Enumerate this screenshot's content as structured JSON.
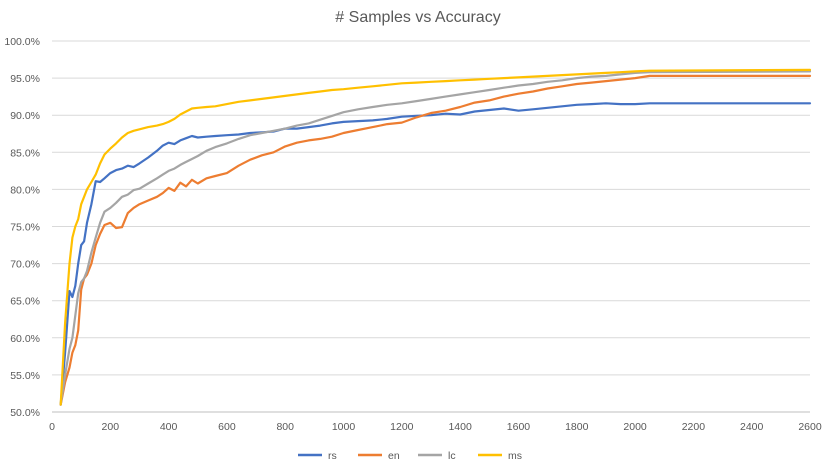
{
  "chart_data": {
    "type": "line",
    "title": "# Samples vs Accuracy",
    "xlabel": "",
    "ylabel": "",
    "xlim": [
      0,
      2600
    ],
    "ylim": [
      0.5,
      1.0
    ],
    "x_ticks": [
      0,
      200,
      400,
      600,
      800,
      1000,
      1200,
      1400,
      1600,
      1800,
      2000,
      2200,
      2400,
      2600
    ],
    "y_ticks": [
      0.5,
      0.55,
      0.6,
      0.65,
      0.7,
      0.75,
      0.8,
      0.85,
      0.9,
      0.95,
      1.0
    ],
    "x_tick_labels": [
      "0",
      "200",
      "400",
      "600",
      "800",
      "1000",
      "1200",
      "1400",
      "1600",
      "1800",
      "2000",
      "2200",
      "2400",
      "2600"
    ],
    "y_tick_labels": [
      "50.0%",
      "55.0%",
      "60.0%",
      "65.0%",
      "70.0%",
      "75.0%",
      "80.0%",
      "85.0%",
      "90.0%",
      "95.0%",
      "100.0%"
    ],
    "grid": "horizontal",
    "legend_position": "bottom",
    "series": [
      {
        "name": "rs",
        "color": "#4472c4",
        "x": [
          30,
          45,
          60,
          70,
          80,
          90,
          100,
          110,
          120,
          135,
          150,
          165,
          180,
          200,
          220,
          240,
          260,
          280,
          300,
          330,
          360,
          380,
          400,
          420,
          440,
          460,
          480,
          500,
          530,
          560,
          600,
          640,
          680,
          720,
          760,
          800,
          840,
          880,
          920,
          960,
          1000,
          1050,
          1100,
          1150,
          1200,
          1250,
          1300,
          1350,
          1400,
          1450,
          1500,
          1550,
          1600,
          1650,
          1700,
          1750,
          1800,
          1850,
          1900,
          1950,
          2000,
          2050,
          2600
        ],
        "y": [
          0.51,
          0.58,
          0.663,
          0.655,
          0.67,
          0.7,
          0.725,
          0.73,
          0.755,
          0.78,
          0.811,
          0.81,
          0.815,
          0.822,
          0.826,
          0.828,
          0.832,
          0.83,
          0.835,
          0.843,
          0.852,
          0.859,
          0.863,
          0.861,
          0.866,
          0.869,
          0.872,
          0.87,
          0.871,
          0.872,
          0.873,
          0.874,
          0.876,
          0.877,
          0.878,
          0.882,
          0.882,
          0.884,
          0.886,
          0.889,
          0.891,
          0.892,
          0.893,
          0.895,
          0.898,
          0.899,
          0.9,
          0.902,
          0.901,
          0.905,
          0.907,
          0.909,
          0.906,
          0.908,
          0.91,
          0.912,
          0.914,
          0.915,
          0.916,
          0.915,
          0.915,
          0.916,
          0.916
        ]
      },
      {
        "name": "en",
        "color": "#ed7d31",
        "x": [
          30,
          45,
          60,
          70,
          80,
          90,
          100,
          110,
          120,
          135,
          150,
          165,
          180,
          200,
          220,
          240,
          260,
          280,
          300,
          330,
          360,
          380,
          400,
          420,
          440,
          460,
          480,
          500,
          530,
          560,
          600,
          640,
          680,
          720,
          760,
          800,
          840,
          880,
          920,
          960,
          1000,
          1050,
          1100,
          1150,
          1200,
          1250,
          1300,
          1350,
          1400,
          1450,
          1500,
          1550,
          1600,
          1650,
          1700,
          1750,
          1800,
          1850,
          1900,
          1950,
          2000,
          2050,
          2600
        ],
        "y": [
          0.51,
          0.54,
          0.56,
          0.58,
          0.59,
          0.61,
          0.665,
          0.68,
          0.685,
          0.7,
          0.725,
          0.74,
          0.752,
          0.755,
          0.748,
          0.749,
          0.768,
          0.775,
          0.78,
          0.785,
          0.79,
          0.795,
          0.802,
          0.798,
          0.809,
          0.804,
          0.813,
          0.808,
          0.815,
          0.818,
          0.822,
          0.832,
          0.84,
          0.846,
          0.85,
          0.858,
          0.863,
          0.866,
          0.868,
          0.871,
          0.876,
          0.88,
          0.884,
          0.888,
          0.89,
          0.897,
          0.903,
          0.906,
          0.911,
          0.917,
          0.92,
          0.925,
          0.929,
          0.932,
          0.936,
          0.939,
          0.942,
          0.944,
          0.946,
          0.948,
          0.95,
          0.953,
          0.953
        ]
      },
      {
        "name": "lc",
        "color": "#a5a5a5",
        "x": [
          30,
          45,
          60,
          70,
          80,
          90,
          100,
          110,
          120,
          135,
          150,
          165,
          180,
          200,
          220,
          240,
          260,
          280,
          300,
          330,
          360,
          380,
          400,
          420,
          440,
          460,
          480,
          500,
          530,
          560,
          600,
          640,
          680,
          720,
          760,
          800,
          840,
          880,
          920,
          960,
          1000,
          1050,
          1100,
          1150,
          1200,
          1250,
          1300,
          1350,
          1400,
          1450,
          1500,
          1550,
          1600,
          1650,
          1700,
          1750,
          1800,
          1850,
          1900,
          1950,
          2000,
          2050,
          2600
        ],
        "y": [
          0.51,
          0.55,
          0.585,
          0.6,
          0.63,
          0.66,
          0.675,
          0.68,
          0.69,
          0.715,
          0.735,
          0.755,
          0.77,
          0.775,
          0.782,
          0.79,
          0.793,
          0.799,
          0.801,
          0.808,
          0.815,
          0.82,
          0.825,
          0.828,
          0.833,
          0.837,
          0.841,
          0.845,
          0.852,
          0.857,
          0.862,
          0.868,
          0.873,
          0.876,
          0.879,
          0.882,
          0.886,
          0.889,
          0.894,
          0.899,
          0.904,
          0.908,
          0.911,
          0.914,
          0.916,
          0.919,
          0.922,
          0.925,
          0.928,
          0.931,
          0.934,
          0.937,
          0.94,
          0.942,
          0.945,
          0.947,
          0.95,
          0.952,
          0.953,
          0.955,
          0.957,
          0.958,
          0.959
        ]
      },
      {
        "name": "ms",
        "color": "#ffc000",
        "x": [
          30,
          45,
          60,
          70,
          80,
          90,
          100,
          110,
          120,
          135,
          150,
          165,
          180,
          200,
          220,
          240,
          260,
          280,
          300,
          330,
          360,
          380,
          400,
          420,
          440,
          460,
          480,
          500,
          530,
          560,
          600,
          640,
          680,
          720,
          760,
          800,
          840,
          880,
          920,
          960,
          1000,
          1050,
          1100,
          1150,
          1200,
          1250,
          1300,
          1350,
          1400,
          1450,
          1500,
          1550,
          1600,
          1650,
          1700,
          1750,
          1800,
          1850,
          1900,
          1950,
          2000,
          2050,
          2600
        ],
        "y": [
          0.51,
          0.62,
          0.7,
          0.735,
          0.75,
          0.76,
          0.78,
          0.79,
          0.8,
          0.81,
          0.82,
          0.835,
          0.847,
          0.855,
          0.862,
          0.87,
          0.876,
          0.879,
          0.881,
          0.884,
          0.886,
          0.888,
          0.891,
          0.895,
          0.901,
          0.905,
          0.909,
          0.91,
          0.911,
          0.912,
          0.915,
          0.918,
          0.92,
          0.922,
          0.924,
          0.926,
          0.928,
          0.93,
          0.932,
          0.934,
          0.935,
          0.937,
          0.939,
          0.941,
          0.943,
          0.944,
          0.945,
          0.946,
          0.947,
          0.948,
          0.949,
          0.95,
          0.951,
          0.952,
          0.953,
          0.954,
          0.955,
          0.956,
          0.957,
          0.958,
          0.959,
          0.96,
          0.961
        ]
      }
    ]
  }
}
